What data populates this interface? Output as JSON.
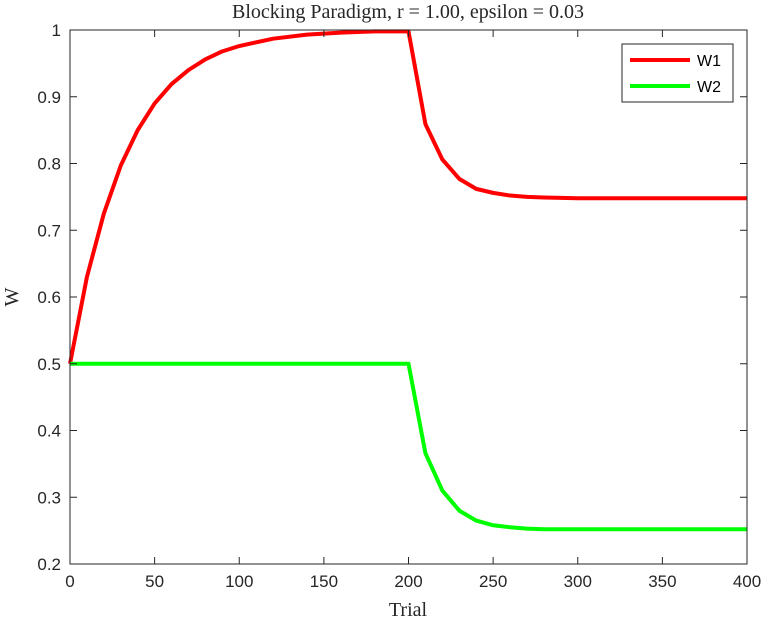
{
  "chart_data": {
    "type": "line",
    "title": "Blocking Paradigm, r = 1.00, epsilon = 0.03",
    "xlabel": "Trial",
    "ylabel": "W",
    "xlim": [
      0,
      400
    ],
    "ylim": [
      0.2,
      1.0
    ],
    "xticks": [
      0,
      50,
      100,
      150,
      200,
      250,
      300,
      350,
      400
    ],
    "yticks": [
      0.2,
      0.3,
      0.4,
      0.5,
      0.6,
      0.7,
      0.8,
      0.9,
      1.0
    ],
    "xtick_labels": [
      "0",
      "50",
      "100",
      "150",
      "200",
      "250",
      "300",
      "350",
      "400"
    ],
    "ytick_labels": [
      "0.2",
      "0.3",
      "0.4",
      "0.5",
      "0.6",
      "0.7",
      "0.8",
      "0.9",
      "1"
    ],
    "grid": false,
    "legend_position": "top-right",
    "series": [
      {
        "name": "W1",
        "color": "#ff0000",
        "x": [
          0,
          10,
          20,
          30,
          40,
          50,
          60,
          70,
          80,
          90,
          100,
          120,
          140,
          160,
          180,
          200,
          210,
          220,
          230,
          240,
          250,
          260,
          270,
          280,
          300,
          320,
          350,
          400
        ],
        "y": [
          0.5,
          0.63,
          0.725,
          0.797,
          0.85,
          0.89,
          0.919,
          0.94,
          0.956,
          0.968,
          0.976,
          0.987,
          0.993,
          0.996,
          0.998,
          0.998,
          0.859,
          0.806,
          0.777,
          0.762,
          0.756,
          0.752,
          0.75,
          0.749,
          0.748,
          0.748,
          0.748,
          0.748
        ]
      },
      {
        "name": "W2",
        "color": "#00ff00",
        "x": [
          0,
          50,
          100,
          150,
          200,
          210,
          220,
          230,
          240,
          250,
          260,
          270,
          280,
          300,
          320,
          350,
          400
        ],
        "y": [
          0.5,
          0.5,
          0.5,
          0.5,
          0.5,
          0.366,
          0.31,
          0.28,
          0.265,
          0.258,
          0.255,
          0.253,
          0.252,
          0.252,
          0.252,
          0.252,
          0.252
        ]
      }
    ]
  }
}
